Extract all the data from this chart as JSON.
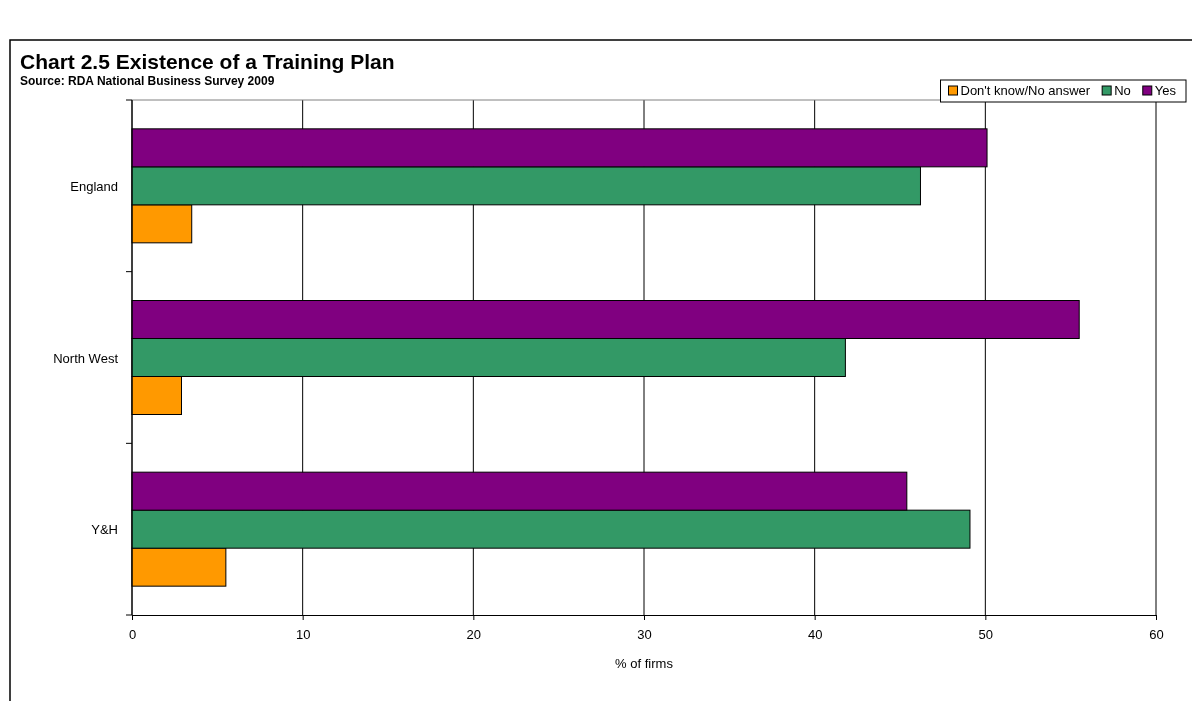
{
  "chart_data": {
    "type": "bar",
    "orientation": "horizontal",
    "title": "Chart 2.5 Existence of a Training Plan",
    "subtitle": "Source: RDA National Business Survey 2009",
    "xlabel": "% of firms",
    "categories": [
      "England",
      "North West",
      "Y&H"
    ],
    "series": [
      {
        "name": "Don't know/No answer",
        "color": "#ff9900",
        "values": [
          3.5,
          2.9,
          5.5
        ]
      },
      {
        "name": "No",
        "color": "#339966",
        "values": [
          46.2,
          41.8,
          49.1
        ]
      },
      {
        "name": "Yes",
        "color": "#800080",
        "values": [
          50.1,
          55.5,
          45.4
        ]
      }
    ],
    "xlim": [
      0,
      60
    ],
    "xticks": [
      0,
      10,
      20,
      30,
      40,
      50,
      60
    ],
    "grid": "x",
    "legend": "top right"
  }
}
